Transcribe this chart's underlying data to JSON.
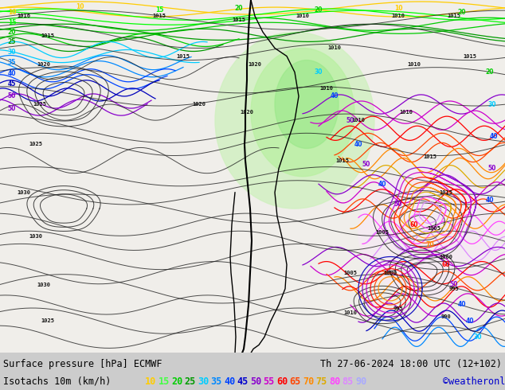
{
  "title_left": "Surface pressure [hPa] ECMWF",
  "title_right": "Th 27-06-2024 18:00 UTC (12+102)",
  "legend_label": "Isotachs 10m (km/h)",
  "copyright": "©weatheronline.co.uk",
  "speed_values": [
    "10",
    "15",
    "20",
    "25",
    "30",
    "35",
    "40",
    "45",
    "50",
    "55",
    "60",
    "65",
    "70",
    "75",
    "80",
    "85",
    "90"
  ],
  "speed_colors": [
    "#ffcc00",
    "#00ff00",
    "#00cc00",
    "#009900",
    "#00ccff",
    "#0088ff",
    "#0044ff",
    "#0000cc",
    "#8800cc",
    "#cc00cc",
    "#ff0000",
    "#ff4400",
    "#ff8800",
    "#ffaa00",
    "#ff44ff",
    "#ff88ff",
    "#aaaaff"
  ],
  "figsize": [
    6.34,
    4.9
  ],
  "dpi": 100,
  "legend_fontsize": 8.5,
  "title_fontsize": 8.5,
  "map_bg": "#f8f8f8",
  "bottom_bg": "#cccccc",
  "black_line_color": "#000000"
}
